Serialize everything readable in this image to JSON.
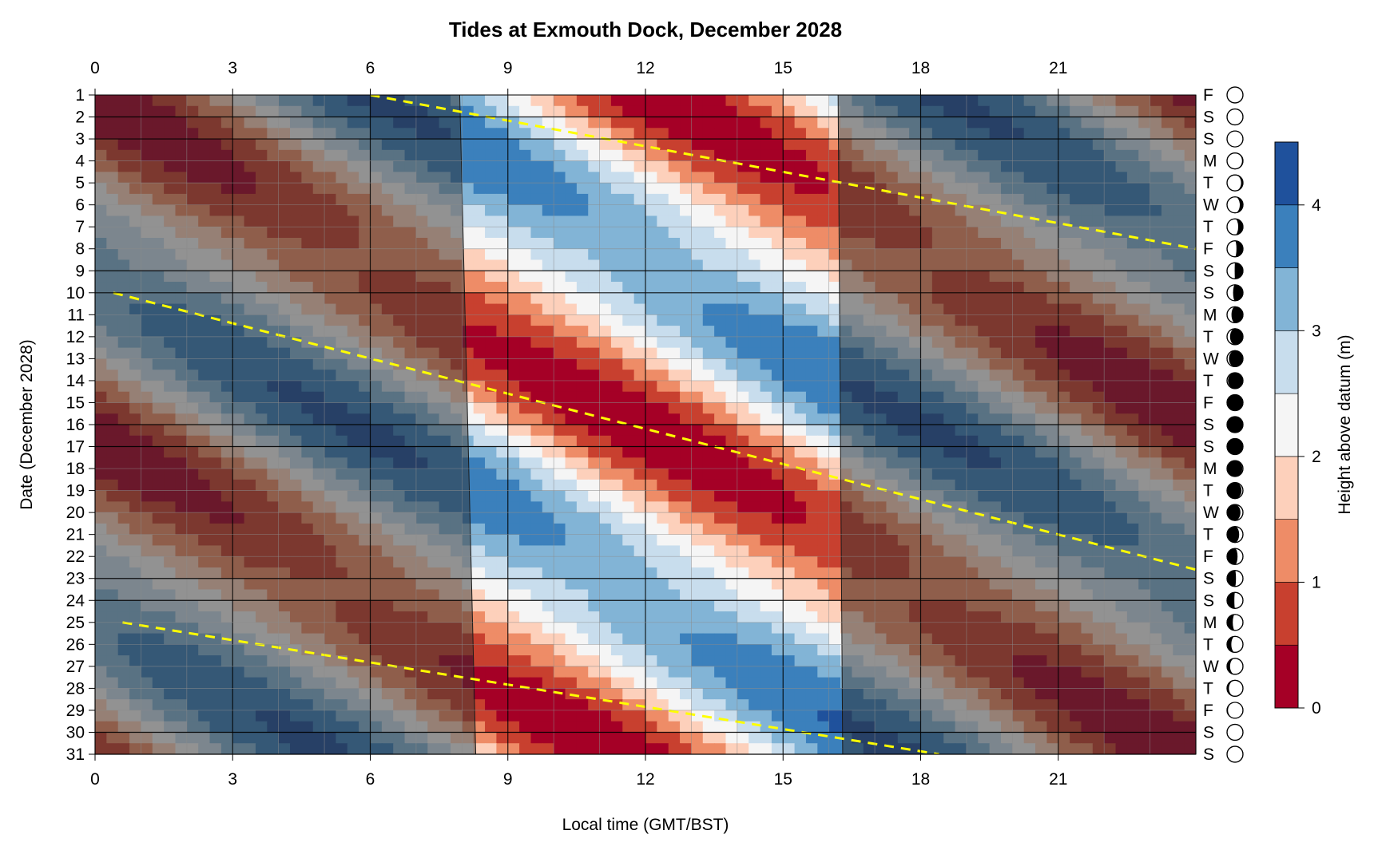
{
  "chart_data": {
    "type": "heatmap",
    "title": "Tides at Exmouth Dock, December 2028",
    "xlabel": "Local time (GMT/BST)",
    "ylabel": "Date (December 2028)",
    "colorbar_label": "Height above datum (m)",
    "xlim": [
      0,
      24
    ],
    "ylim": [
      1,
      31
    ],
    "x_ticks": [
      0,
      3,
      6,
      9,
      12,
      15,
      18,
      21
    ],
    "y_ticks": [
      1,
      2,
      3,
      4,
      5,
      6,
      7,
      8,
      9,
      10,
      11,
      12,
      13,
      14,
      15,
      16,
      17,
      18,
      19,
      20,
      21,
      22,
      23,
      24,
      25,
      26,
      27,
      28,
      29,
      30,
      31
    ],
    "weekday_letters": [
      "F",
      "S",
      "S",
      "M",
      "T",
      "W",
      "T",
      "F",
      "S",
      "S",
      "M",
      "T",
      "W",
      "T",
      "F",
      "S",
      "S",
      "M",
      "T",
      "W",
      "T",
      "F",
      "S",
      "S",
      "M",
      "T",
      "W",
      "T",
      "F",
      "S",
      "S"
    ],
    "moon_illumination": [
      0.0,
      0.0,
      0.02,
      0.06,
      0.12,
      0.2,
      0.3,
      0.41,
      0.52,
      0.62,
      0.72,
      0.81,
      0.88,
      0.94,
      0.98,
      1.0,
      0.99,
      0.96,
      0.91,
      0.84,
      0.76,
      0.66,
      0.56,
      0.46,
      0.36,
      0.27,
      0.19,
      0.12,
      0.06,
      0.02,
      0.0
    ],
    "moon_waxing": [
      true,
      true,
      true,
      true,
      true,
      true,
      true,
      true,
      true,
      true,
      true,
      true,
      true,
      true,
      true,
      true,
      false,
      false,
      false,
      false,
      false,
      false,
      false,
      false,
      false,
      false,
      false,
      false,
      false,
      false,
      false
    ],
    "colorbar_levels": [
      0,
      0.5,
      1,
      1.5,
      2,
      2.5,
      3,
      3.5,
      4,
      4.5
    ],
    "colorbar_ticks": [
      0,
      1,
      2,
      3,
      4
    ],
    "colors": [
      "#a50026",
      "#c8402f",
      "#ee8c67",
      "#fdd0bb",
      "#f5f5f5",
      "#c8dded",
      "#82b4d6",
      "#3b80bc",
      "#1f519c"
    ],
    "tide_model": {
      "mean_level": 2.1,
      "amplitude_neap": 1.0,
      "amplitude_spring": 2.0,
      "spring_days": [
        1,
        16,
        31
      ],
      "period_hours": 12.42,
      "high_water_hour_day1": 6.0,
      "daily_shift_hours": 0.8
    },
    "daylight": {
      "sunrise_day1": 7.95,
      "sunrise_day31": 8.3,
      "sunset_day1": 16.2,
      "sunset_day31": 16.3,
      "night_shade": "#303030",
      "night_opacity": 0.5
    },
    "high_water_line_color": "#ffff00",
    "high_water_lines": [
      {
        "x": [
          6.0,
          24.0
        ],
        "y": [
          1,
          8
        ]
      },
      {
        "x": [
          0.4,
          24.0
        ],
        "y": [
          10,
          22.6
        ]
      },
      {
        "x": [
          0.6,
          18.4
        ],
        "y": [
          25,
          31
        ]
      }
    ]
  }
}
